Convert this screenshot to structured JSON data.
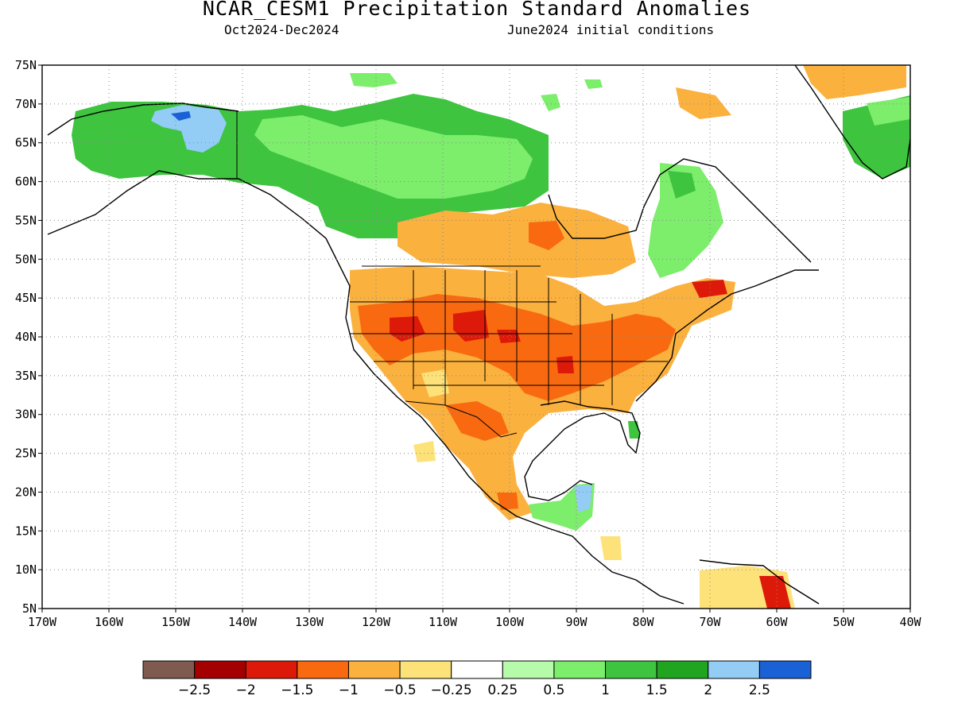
{
  "header": {
    "title": "NCAR_CESM1 Precipitation Standard Anomalies",
    "period": "Oct2024-Dec2024",
    "init": "June2024 initial conditions"
  },
  "axes": {
    "lon_ticks": [
      "170W",
      "160W",
      "150W",
      "140W",
      "130W",
      "120W",
      "110W",
      "100W",
      "90W",
      "80W",
      "70W",
      "60W",
      "50W",
      "40W"
    ],
    "lat_ticks": [
      "75N",
      "70N",
      "65N",
      "60N",
      "55N",
      "50N",
      "45N",
      "40N",
      "35N",
      "30N",
      "25N",
      "20N",
      "15N",
      "10N",
      "5N"
    ],
    "lon_range": [
      -170,
      -40
    ],
    "lat_range": [
      5,
      75
    ],
    "grid": "dotted"
  },
  "colorbar": {
    "colors": [
      "#7f5a4f",
      "#a50000",
      "#dd1a0a",
      "#f96a10",
      "#fbb13e",
      "#fde27a",
      "#ffffff",
      "#b6fbaa",
      "#7ded6c",
      "#3ec43f",
      "#21a520",
      "#93ccf5",
      "#1a61d6"
    ],
    "labels": [
      "-2.5",
      "-2",
      "-1.5",
      "-1",
      "-0.5",
      "-0.25",
      "0.25",
      "0.5",
      "1",
      "1.5",
      "2",
      "2.5"
    ]
  },
  "regions": [
    {
      "name": "alaska-wet",
      "color": "#3ec43f"
    },
    {
      "name": "alaska-very-wet",
      "color": "#93ccf5"
    },
    {
      "name": "canada-north-wet",
      "color": "#7ded6c"
    },
    {
      "name": "canada-central-dry",
      "color": "#fbb13e"
    },
    {
      "name": "us-dry",
      "color": "#fbb13e"
    },
    {
      "name": "us-very-dry",
      "color": "#f96a10"
    },
    {
      "name": "us-extreme-dry",
      "color": "#dd1a0a"
    },
    {
      "name": "mexico-dry",
      "color": "#fbb13e"
    },
    {
      "name": "quebec-wet",
      "color": "#7ded6c"
    },
    {
      "name": "greenland-wet",
      "color": "#3ec43f"
    },
    {
      "name": "greenland-dry",
      "color": "#fbb13e"
    },
    {
      "name": "yucatan-wet",
      "color": "#7ded6c"
    },
    {
      "name": "venezuela-dry",
      "color": "#fde27a"
    }
  ]
}
